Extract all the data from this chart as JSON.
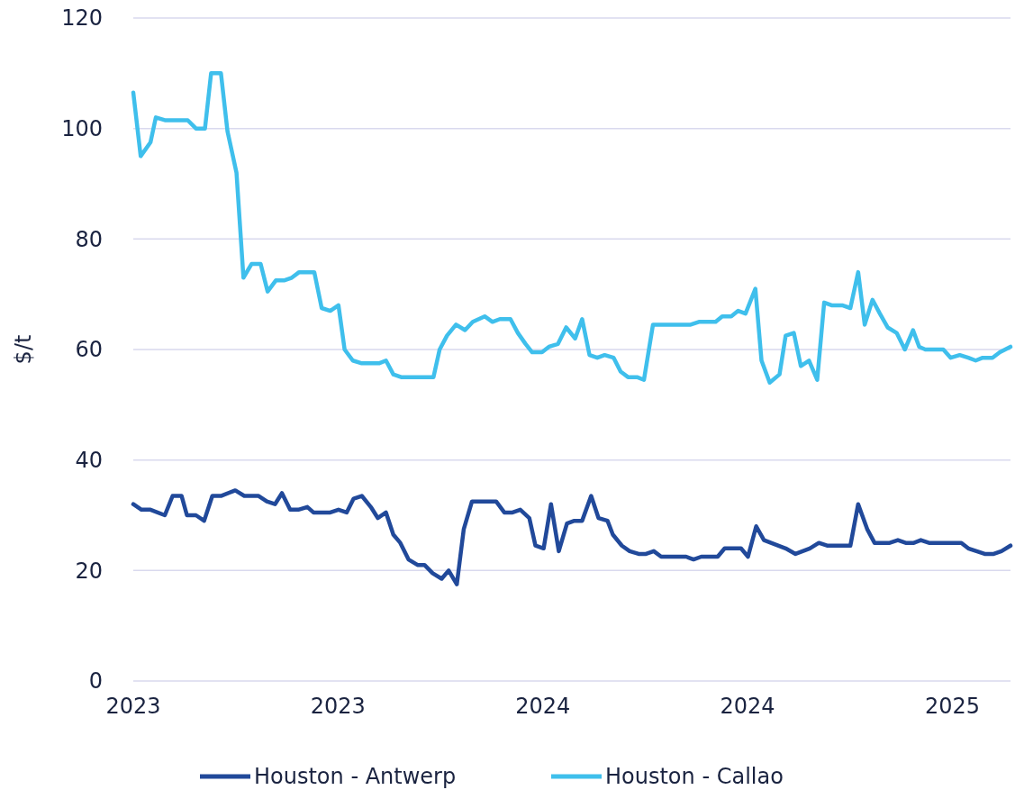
{
  "chart_data": {
    "type": "line",
    "ylabel": "$/t",
    "xlim": [
      2023,
      2025.142
    ],
    "ylim": [
      0,
      120
    ],
    "xticks": [
      {
        "value": 2023,
        "label": "2023"
      },
      {
        "value": 2023.5,
        "label": "2023"
      },
      {
        "value": 2024,
        "label": "2024"
      },
      {
        "value": 2024.5,
        "label": "2024"
      },
      {
        "value": 2025,
        "label": "2025"
      }
    ],
    "yticks": [
      0,
      20,
      40,
      60,
      80,
      100,
      120
    ],
    "grid": "y",
    "legend": "bottom",
    "line_style": "solid",
    "series": [
      {
        "name": "Houston - Antwerp",
        "color": "#21499a",
        "x": [
          2023,
          2023.02,
          2023.042,
          2023.077,
          2023.096,
          2023.118,
          2023.131,
          2023.153,
          2023.173,
          2023.193,
          2023.214,
          2023.249,
          2023.271,
          2023.306,
          2023.326,
          2023.346,
          2023.363,
          2023.383,
          2023.403,
          2023.425,
          2023.44,
          2023.481,
          2023.501,
          2023.521,
          2023.538,
          2023.558,
          2023.58,
          2023.597,
          2023.617,
          2023.635,
          2023.652,
          2023.672,
          2023.694,
          2023.711,
          2023.731,
          2023.753,
          2023.77,
          2023.79,
          2023.807,
          2023.827,
          2023.886,
          2023.906,
          2023.926,
          2023.945,
          2023.967,
          2023.982,
          2024.002,
          2024.02,
          2024.039,
          2024.059,
          2024.077,
          2024.096,
          2024.118,
          2024.136,
          2024.158,
          2024.171,
          2024.193,
          2024.212,
          2024.234,
          2024.252,
          2024.271,
          2024.289,
          2024.35,
          2024.368,
          2024.387,
          2024.427,
          2024.444,
          2024.484,
          2024.501,
          2024.521,
          2024.54,
          2024.593,
          2024.617,
          2024.652,
          2024.674,
          2024.694,
          2024.751,
          2024.77,
          2024.792,
          2024.81,
          2024.847,
          2024.867,
          2024.886,
          2024.906,
          2024.923,
          2024.943,
          2025.022,
          2025.039,
          2025.059,
          2025.079,
          2025.101,
          2025.12,
          2025.142
        ],
        "values": [
          32,
          31,
          31,
          30,
          33.5,
          33.5,
          30,
          30,
          29,
          33.5,
          33.5,
          34.5,
          33.5,
          33.5,
          32.5,
          32,
          34,
          31,
          31,
          31.5,
          30.5,
          30.5,
          31,
          30.5,
          33,
          33.5,
          31.5,
          29.5,
          30.5,
          26.5,
          25,
          22,
          21,
          21,
          19.5,
          18.5,
          20,
          17.5,
          27.5,
          32.5,
          32.5,
          30.5,
          30.5,
          31,
          29.5,
          24.5,
          24,
          32,
          23.5,
          28.5,
          29,
          29,
          33.5,
          29.5,
          29,
          26.5,
          24.5,
          23.5,
          23,
          23,
          23.5,
          22.5,
          22.5,
          22,
          22.5,
          22.5,
          24,
          24,
          22.5,
          28,
          25.5,
          24,
          23,
          24,
          25,
          24.5,
          24.5,
          32,
          27.5,
          25,
          25,
          25.5,
          25,
          25,
          25.5,
          25,
          25,
          24,
          23.5,
          23,
          23,
          23.5,
          24.5
        ]
      },
      {
        "name": "Houston - Callao",
        "color": "#3fbfec",
        "x": [
          2023,
          2023.018,
          2023.042,
          2023.055,
          2023.077,
          2023.133,
          2023.153,
          2023.175,
          2023.19,
          2023.214,
          2023.23,
          2023.252,
          2023.269,
          2023.289,
          2023.311,
          2023.328,
          2023.348,
          2023.368,
          2023.387,
          2023.405,
          2023.442,
          2023.46,
          2023.481,
          2023.501,
          2023.516,
          2023.536,
          2023.558,
          2023.6,
          2023.617,
          2023.635,
          2023.654,
          2023.733,
          2023.748,
          2023.766,
          2023.788,
          2023.81,
          2023.829,
          2023.858,
          2023.877,
          2023.895,
          2023.921,
          2023.939,
          2023.958,
          2023.974,
          2023.998,
          2024.015,
          2024.037,
          2024.057,
          2024.079,
          2024.096,
          2024.114,
          2024.133,
          2024.151,
          2024.173,
          2024.19,
          2024.208,
          2024.23,
          2024.247,
          2024.269,
          2024.361,
          2024.381,
          2024.422,
          2024.438,
          2024.46,
          2024.477,
          2024.495,
          2024.519,
          2024.534,
          2024.554,
          2024.578,
          2024.593,
          2024.613,
          2024.63,
          2024.65,
          2024.67,
          2024.687,
          2024.705,
          2024.731,
          2024.751,
          2024.77,
          2024.786,
          2024.805,
          2024.823,
          2024.842,
          2024.864,
          2024.884,
          2024.904,
          2024.919,
          2024.934,
          2024.978,
          2024.996,
          2025.018,
          2025.039,
          2025.057,
          2025.074,
          2025.098,
          2025.116,
          2025.142
        ],
        "values": [
          106.5,
          95,
          97.5,
          102,
          101.5,
          101.5,
          100,
          100,
          110,
          110,
          99.5,
          92,
          73,
          75.5,
          75.5,
          70.5,
          72.5,
          72.5,
          73,
          74,
          74,
          67.5,
          67,
          68,
          60,
          58,
          57.5,
          57.5,
          58,
          55.5,
          55,
          55,
          60,
          62.5,
          64.5,
          63.5,
          65,
          66,
          65,
          65.5,
          65.5,
          63,
          61,
          59.5,
          59.5,
          60.5,
          61,
          64,
          62,
          65.5,
          59,
          58.5,
          59,
          58.5,
          56,
          55,
          55,
          54.5,
          64.5,
          64.5,
          65,
          65,
          66,
          66,
          67,
          66.5,
          71,
          58,
          54,
          55.5,
          62.5,
          63,
          57,
          58,
          54.5,
          68.5,
          68,
          68,
          67.5,
          74,
          64.5,
          69,
          66.5,
          64,
          63,
          60,
          63.5,
          60.5,
          60,
          60,
          58.5,
          59,
          58.5,
          58,
          58.5,
          58.5,
          59.5,
          60.5
        ]
      }
    ]
  }
}
